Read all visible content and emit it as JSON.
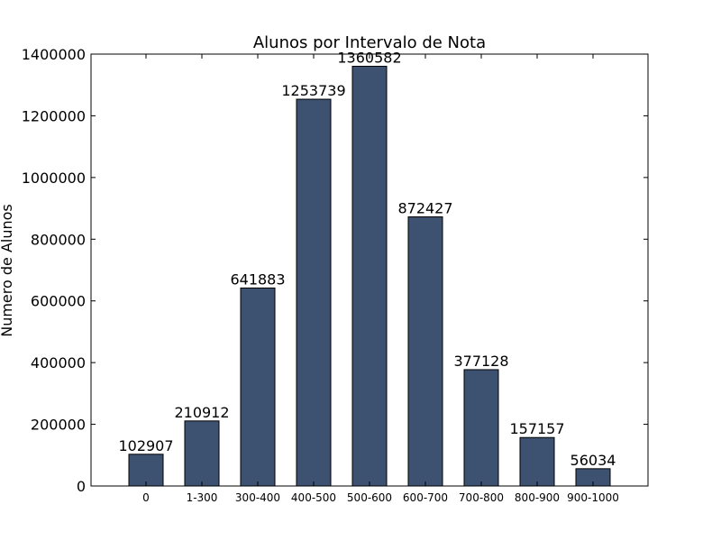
{
  "chart_data": {
    "type": "bar",
    "title": "Alunos por Intervalo de Nota",
    "xlabel": "",
    "ylabel": "Numero de Alunos",
    "categories": [
      "0",
      "1-300",
      "300-400",
      "400-500",
      "500-600",
      "600-700",
      "700-800",
      "800-900",
      "900-1000"
    ],
    "values": [
      102907,
      210912,
      641883,
      1253739,
      1360582,
      872427,
      377128,
      157157,
      56034
    ],
    "data_labels": [
      "102907",
      "210912",
      "641883",
      "1253739",
      "1360582",
      "872427",
      "377128",
      "157157",
      "56034"
    ],
    "ylim": [
      0,
      1400000
    ],
    "yticks": [
      0,
      200000,
      400000,
      600000,
      800000,
      1000000,
      1200000,
      1400000
    ],
    "ytick_labels": [
      "0",
      "200000",
      "400000",
      "600000",
      "800000",
      "1000000",
      "1200000",
      "1400000"
    ],
    "bar_color": "#3d5170",
    "grid": false,
    "legend": false
  }
}
